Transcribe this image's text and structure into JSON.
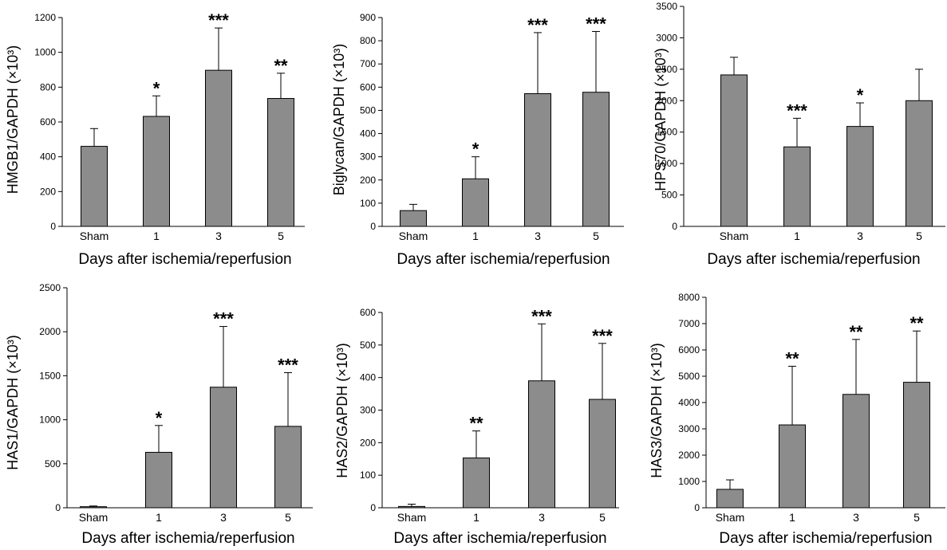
{
  "chart_data": [
    {
      "type": "bar",
      "categories": [
        "Sham",
        "1",
        "3",
        "5"
      ],
      "values": [
        460,
        632,
        897,
        735
      ],
      "errors": [
        102,
        118,
        243,
        145
      ],
      "significance": [
        "",
        "*",
        "***",
        "**"
      ],
      "xlabel": "Days after ischemia/reperfusion",
      "ylabel": "HMGB1/GAPDH (×10³)",
      "ylim": [
        0,
        1200
      ],
      "yticks": [
        0,
        200,
        400,
        600,
        800,
        1000,
        1200
      ],
      "bar_color": "#8c8c8c",
      "grid": false
    },
    {
      "type": "bar",
      "categories": [
        "Sham",
        "1",
        "3",
        "5"
      ],
      "values": [
        68,
        205,
        572,
        578
      ],
      "errors": [
        27,
        95,
        263,
        262
      ],
      "significance": [
        "",
        "*",
        "***",
        "***"
      ],
      "xlabel": "Days after ischemia/reperfusion",
      "ylabel": "Biglycan/GAPDH (×10³)",
      "ylim": [
        0,
        900
      ],
      "yticks": [
        0,
        100,
        200,
        300,
        400,
        500,
        600,
        700,
        800,
        900
      ],
      "bar_color": "#8c8c8c",
      "grid": false
    },
    {
      "type": "bar",
      "categories": [
        "Sham",
        "1",
        "3",
        "5"
      ],
      "values": [
        2410,
        1265,
        1590,
        2000
      ],
      "errors": [
        280,
        455,
        375,
        500
      ],
      "significance": [
        "",
        "***",
        "*",
        ""
      ],
      "xlabel": "Days after ischemia/reperfusion",
      "ylabel": "HPS70/GAPDH (×10³)",
      "ylim": [
        0,
        3500
      ],
      "yticks": [
        0,
        500,
        1000,
        1500,
        2000,
        2500,
        3000,
        3500
      ],
      "bar_color": "#8c8c8c",
      "grid": false
    },
    {
      "type": "bar",
      "categories": [
        "Sham",
        "1",
        "3",
        "5"
      ],
      "values": [
        12,
        630,
        1370,
        925
      ],
      "errors": [
        8,
        305,
        690,
        610
      ],
      "significance": [
        "",
        "*",
        "***",
        "***"
      ],
      "xlabel": "Days after ischemia/reperfusion",
      "ylabel": "HAS1/GAPDH (×10³)",
      "ylim": [
        0,
        2500
      ],
      "yticks": [
        0,
        500,
        1000,
        1500,
        2000,
        2500
      ],
      "bar_color": "#8c8c8c",
      "grid": false
    },
    {
      "type": "bar",
      "categories": [
        "Sham",
        "1",
        "3",
        "5"
      ],
      "values": [
        4,
        153,
        390,
        333
      ],
      "errors": [
        7,
        83,
        175,
        172
      ],
      "significance": [
        "",
        "**",
        "***",
        "***"
      ],
      "xlabel": "Days after ischemia/reperfusion",
      "ylabel": "HAS2/GAPDH (×10³)",
      "ylim": [
        0,
        600
      ],
      "yticks": [
        0,
        100,
        200,
        300,
        400,
        500,
        600
      ],
      "bar_color": "#8c8c8c",
      "grid": false
    },
    {
      "type": "bar",
      "categories": [
        "Sham",
        "1",
        "3",
        "5"
      ],
      "values": [
        700,
        3150,
        4310,
        4770
      ],
      "errors": [
        360,
        2230,
        2090,
        1950
      ],
      "significance": [
        "",
        "**",
        "**",
        "**"
      ],
      "xlabel": "Days after ischemia/reperfusion",
      "ylabel": "HAS3/GAPDH (×10³)",
      "ylim": [
        0,
        8000
      ],
      "yticks": [
        0,
        1000,
        2000,
        3000,
        4000,
        5000,
        6000,
        7000,
        8000
      ],
      "bar_color": "#8c8c8c",
      "grid": false
    }
  ]
}
